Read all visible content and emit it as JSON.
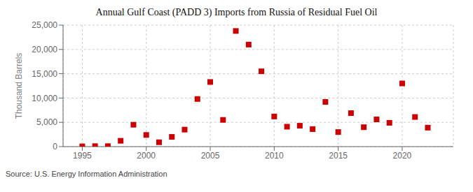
{
  "chart_data": {
    "type": "scatter",
    "title": "Annual Gulf Coast (PADD 3) Imports from Russia of Residual Fuel Oil",
    "y_label": "Thousand Barrels",
    "annotations": [
      "Source: U.S. Energy Information Administration"
    ],
    "x": [
      1995,
      1996,
      1997,
      1998,
      1999,
      2000,
      2001,
      2002,
      2003,
      2004,
      2005,
      2006,
      2007,
      2008,
      2009,
      2010,
      2011,
      2012,
      2013,
      2014,
      2015,
      2016,
      2017,
      2018,
      2019,
      2020,
      2021,
      2022
    ],
    "values": [
      50,
      100,
      100,
      1200,
      4500,
      2400,
      900,
      2000,
      3500,
      9800,
      13300,
      5500,
      23800,
      21000,
      15500,
      6200,
      4100,
      4300,
      3600,
      9200,
      3000,
      6900,
      4000,
      5600,
      4900,
      13000,
      6100,
      3900
    ],
    "color": "#cc0000",
    "marker": "square",
    "xlim": [
      1993.5,
      2024
    ],
    "xticks": [
      1995,
      2000,
      2005,
      2010,
      2015,
      2020
    ],
    "ylim": [
      0,
      25000
    ],
    "yticks": [
      0,
      {
        "value": 5000,
        "label": "5,000"
      },
      {
        "value": 10000,
        "label": "10,000"
      },
      {
        "value": 15000,
        "label": "15,000"
      },
      {
        "value": 20000,
        "label": "20,000"
      },
      {
        "value": 25000,
        "label": "25,000"
      }
    ],
    "grid": true
  }
}
